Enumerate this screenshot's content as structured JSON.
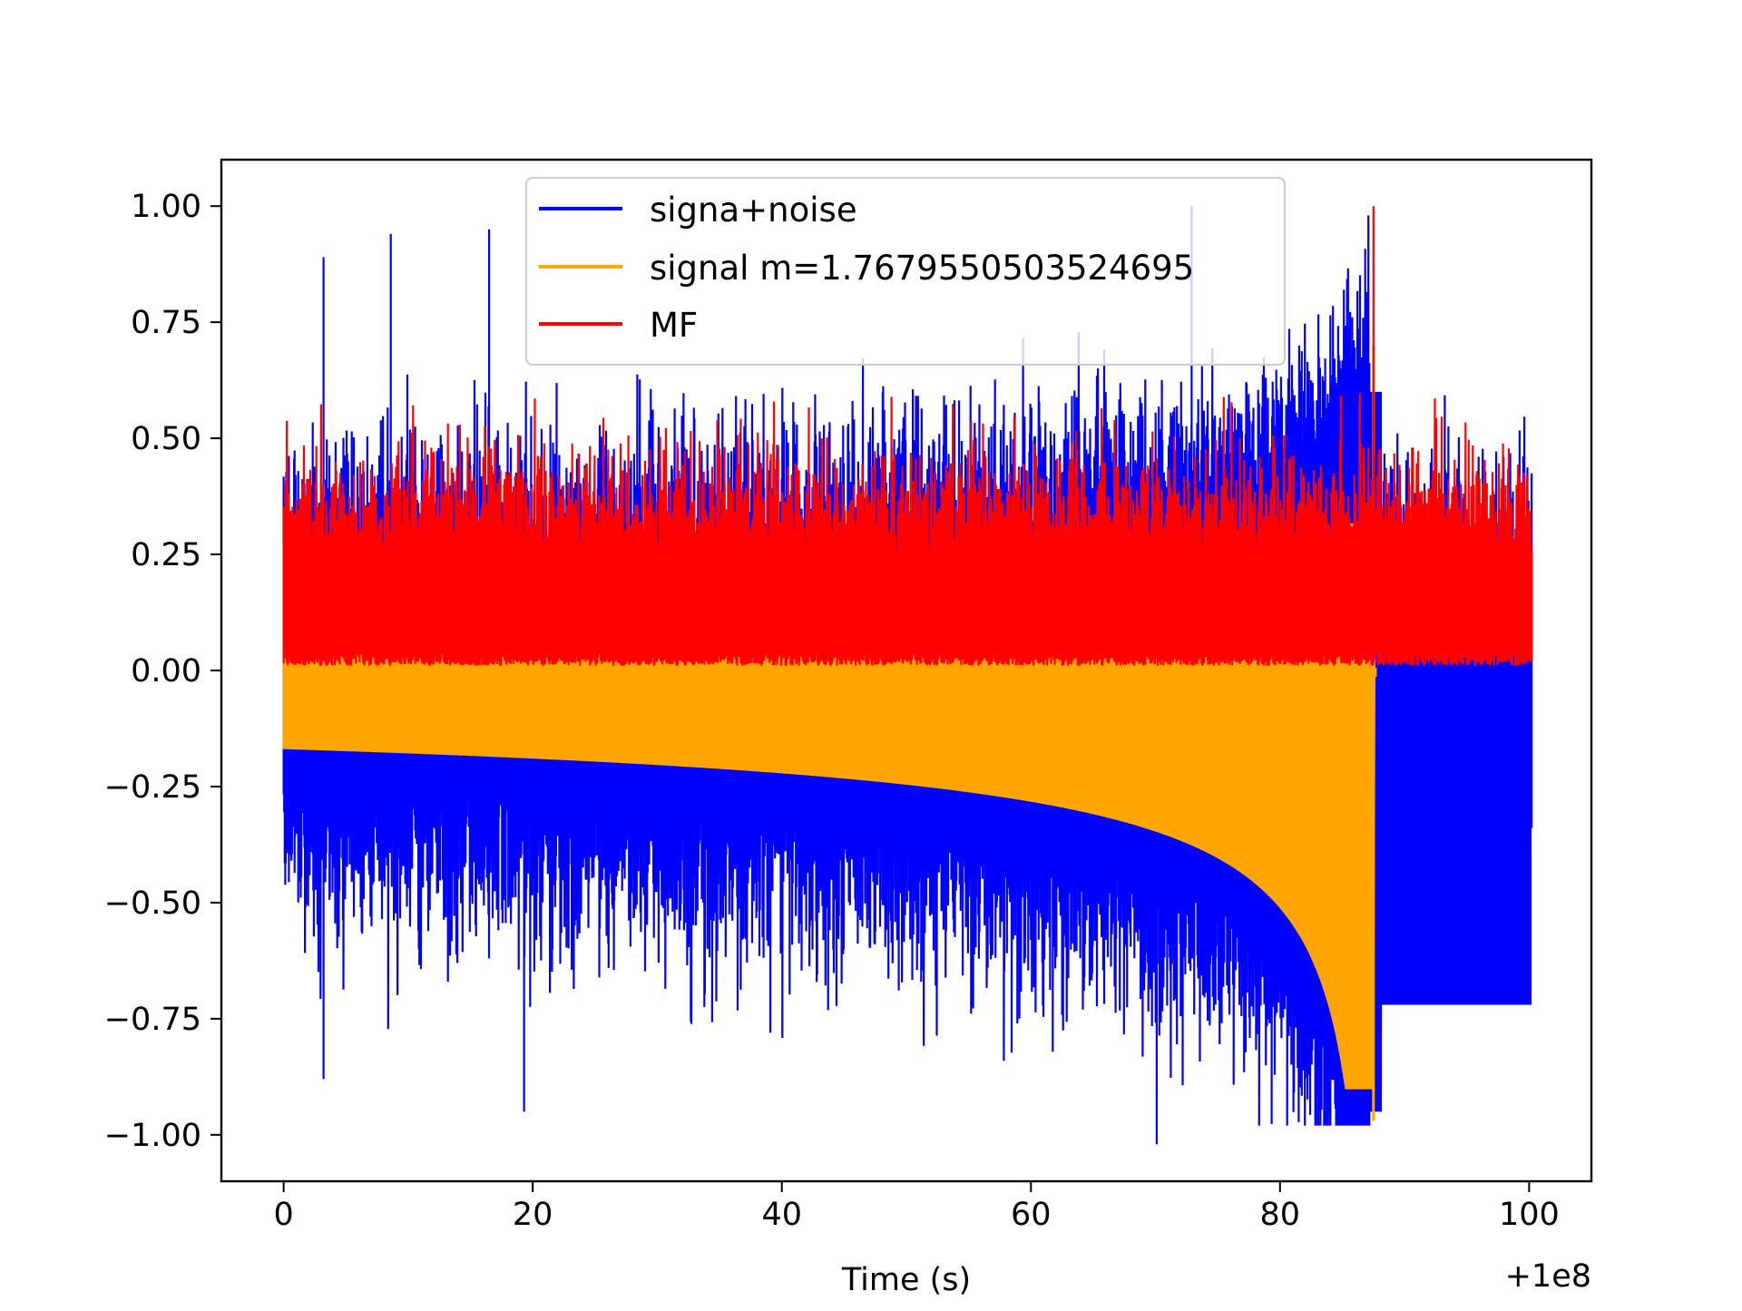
{
  "chart_data": {
    "type": "line",
    "title": "",
    "xlabel": "Time (s)",
    "ylabel": "",
    "x_offset_label": "+1e8",
    "xlim": [
      -5,
      105
    ],
    "ylim": [
      -1.1,
      1.1
    ],
    "xticks": [
      0,
      20,
      40,
      60,
      80,
      100
    ],
    "xtick_labels": [
      "0",
      "20",
      "40",
      "60",
      "80",
      "100"
    ],
    "yticks": [
      1.0,
      0.75,
      0.5,
      0.25,
      0.0,
      -0.25,
      -0.5,
      -0.75,
      -1.0
    ],
    "ytick_labels": [
      "1.00",
      "0.75",
      "0.50",
      "0.25",
      "0.00",
      "−0.25",
      "−0.50",
      "−0.75",
      "−1.00"
    ],
    "grid": false,
    "legend_position": "top-center",
    "x_range": [
      0,
      100.2
    ],
    "series": [
      {
        "name": "signa+noise",
        "color": "#0000ff",
        "description_values": {
          "upper_envelope_typical": 0.45,
          "lower_envelope_typical": -0.45,
          "peaks": [
            {
              "x": 3.2,
              "y": 0.89
            },
            {
              "x": 8.6,
              "y": 0.94
            },
            {
              "x": 16.5,
              "y": 0.95
            },
            {
              "x": 19.3,
              "y": -0.95
            },
            {
              "x": 70.1,
              "y": -1.02
            },
            {
              "x": 72.9,
              "y": 1.0
            },
            {
              "x": 3.2,
              "y": -0.88
            }
          ],
          "baseline_after_merger": -0.01
        }
      },
      {
        "name": "signal m=1.7679550503524695",
        "color": "#ffa500",
        "description_values": {
          "start_amplitude": 0.17,
          "merger_time": 87.5,
          "merger_max": 0.7,
          "merger_min": -0.97
        }
      },
      {
        "name": "MF",
        "color": "#ff0000",
        "description_values": {
          "band_min": 0.01,
          "band_typical_max": 0.42,
          "peak": {
            "x": 87.5,
            "y": 1.0
          }
        }
      }
    ]
  }
}
